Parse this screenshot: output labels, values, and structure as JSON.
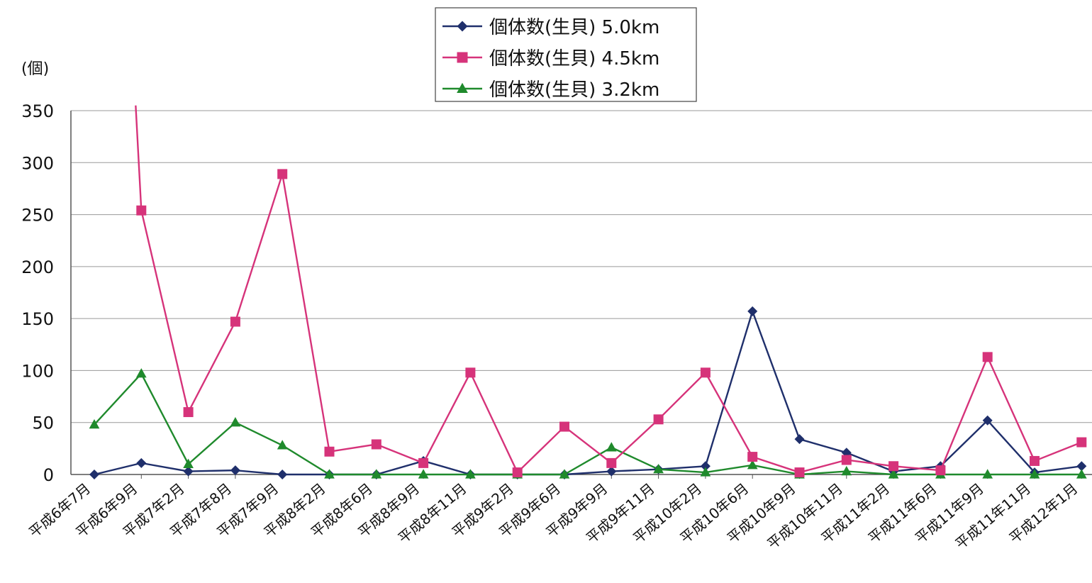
{
  "chart_data": {
    "type": "line",
    "unit_label": "(個)",
    "ylim": [
      0,
      350
    ],
    "yticks": [
      "0",
      "50",
      "100",
      "150",
      "200",
      "250",
      "300",
      "350"
    ],
    "categories": [
      "平成6年7月",
      "平成6年9月",
      "平成7年2月",
      "平成7年8月",
      "平成7年9月",
      "平成8年2月",
      "平成8年6月",
      "平成8年9月",
      "平成8年11月",
      "平成9年2月",
      "平成9年6月",
      "平成9年9月",
      "平成9年11月",
      "平成10年2月",
      "平成10年6月",
      "平成10年9月",
      "平成10年11月",
      "平成11年2月",
      "平成11年6月",
      "平成11年9月",
      "平成11年11月",
      "平成12年1月"
    ],
    "grid": true,
    "legend_position": "top-center",
    "series": [
      {
        "name": "個体数(生貝) 5.0km",
        "color": "#1f2f6b",
        "marker": "diamond",
        "values": [
          0,
          11,
          3,
          4,
          0,
          0,
          0,
          13,
          0,
          0,
          0,
          3,
          5,
          8,
          157,
          34,
          21,
          3,
          8,
          52,
          2,
          8
        ]
      },
      {
        "name": "個体数(生貝) 4.5km",
        "color": "#d6337a",
        "marker": "square",
        "start_value": 355,
        "values": [
          null,
          254,
          60,
          147,
          289,
          22,
          29,
          11,
          98,
          2,
          46,
          11,
          53,
          98,
          17,
          2,
          14,
          8,
          4,
          113,
          13,
          31
        ]
      },
      {
        "name": "個体数(生貝) 3.2km",
        "color": "#1f8a2c",
        "marker": "triangle",
        "values": [
          48,
          97,
          10,
          50,
          28,
          0,
          0,
          0,
          0,
          0,
          0,
          26,
          5,
          2,
          9,
          0,
          3,
          0,
          0,
          0,
          0,
          0
        ]
      }
    ]
  }
}
